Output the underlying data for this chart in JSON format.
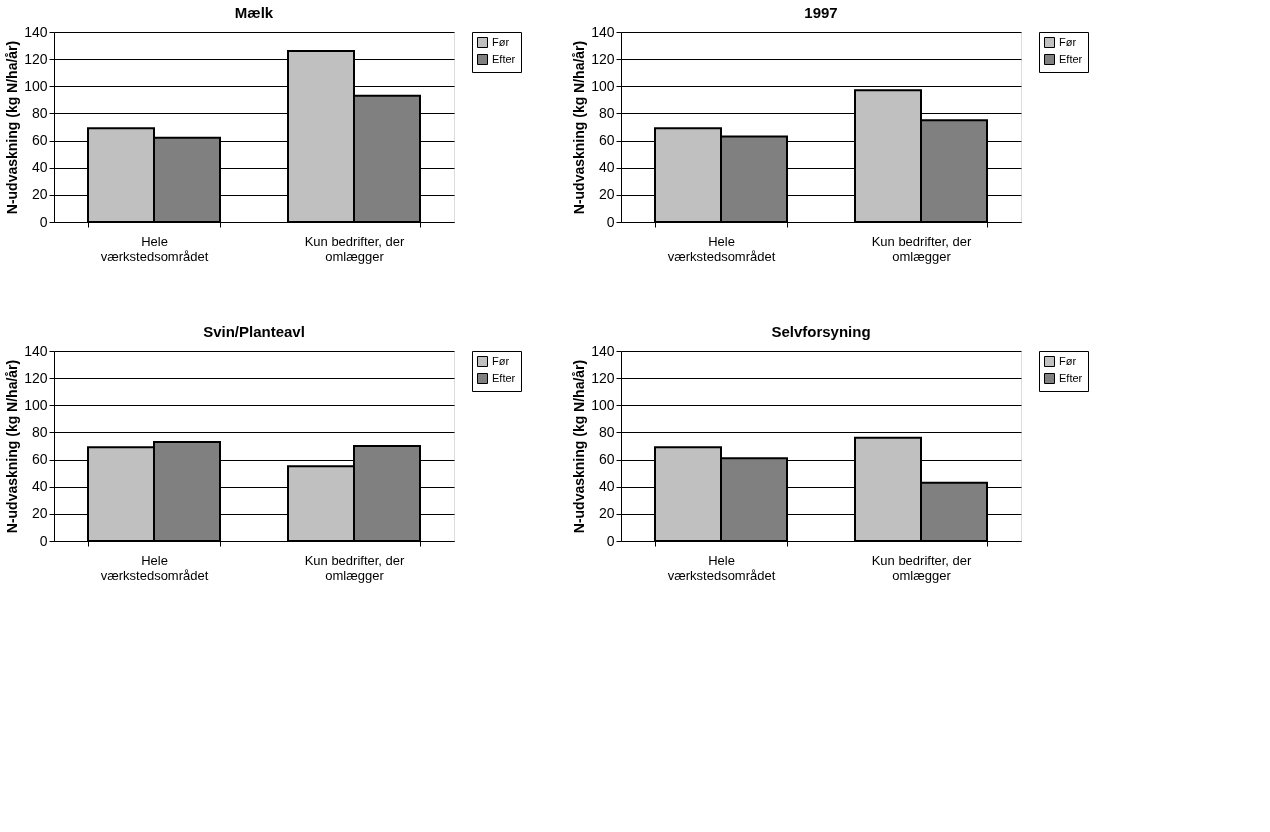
{
  "chart_data": [
    {
      "type": "bar",
      "title": "Mælk",
      "ylabel": "N-udvaskning (kg N/ha/år)",
      "categories": [
        "Hele værkstedsområdet",
        "Kun bedrifter, der omlægger"
      ],
      "ylim": [
        0,
        140
      ],
      "yticks": [
        0,
        20,
        40,
        60,
        80,
        100,
        120,
        140
      ],
      "grid": "y",
      "legend": "right",
      "series": [
        {
          "name": "Før",
          "color": "#c0c0c0",
          "values": [
            69,
            126
          ]
        },
        {
          "name": "Efter",
          "color": "#808080",
          "values": [
            62,
            93
          ]
        }
      ]
    },
    {
      "type": "bar",
      "title": "1997",
      "ylabel": "N-udvaskning (kg N/ha/år)",
      "categories": [
        "Hele værkstedsområdet",
        "Kun bedrifter, der omlægger"
      ],
      "ylim": [
        0,
        140
      ],
      "yticks": [
        0,
        20,
        40,
        60,
        80,
        100,
        120,
        140
      ],
      "grid": "y",
      "legend": "right",
      "series": [
        {
          "name": "Før",
          "color": "#c0c0c0",
          "values": [
            69,
            97
          ]
        },
        {
          "name": "Efter",
          "color": "#808080",
          "values": [
            63,
            75
          ]
        }
      ]
    },
    {
      "type": "bar",
      "title": "Svin/Planteavl",
      "ylabel": "N-udvaskning (kg N/ha/år)",
      "categories": [
        "Hele værkstedsområdet",
        "Kun bedrifter, der omlægger"
      ],
      "ylim": [
        0,
        140
      ],
      "yticks": [
        0,
        20,
        40,
        60,
        80,
        100,
        120,
        140
      ],
      "grid": "y",
      "legend": "right",
      "series": [
        {
          "name": "Før",
          "color": "#c0c0c0",
          "values": [
            69,
            55
          ]
        },
        {
          "name": "Efter",
          "color": "#808080",
          "values": [
            73,
            70
          ]
        }
      ]
    },
    {
      "type": "bar",
      "title": "Selvforsyning",
      "ylabel": "N-udvaskning (kg N/ha/år)",
      "categories": [
        "Hele værkstedsområdet",
        "Kun bedrifter, der omlægger"
      ],
      "ylim": [
        0,
        140
      ],
      "yticks": [
        0,
        20,
        40,
        60,
        80,
        100,
        120,
        140
      ],
      "grid": "y",
      "legend": "right",
      "series": [
        {
          "name": "Før",
          "color": "#c0c0c0",
          "values": [
            69,
            76
          ]
        },
        {
          "name": "Efter",
          "color": "#808080",
          "values": [
            61,
            43
          ]
        }
      ]
    }
  ]
}
